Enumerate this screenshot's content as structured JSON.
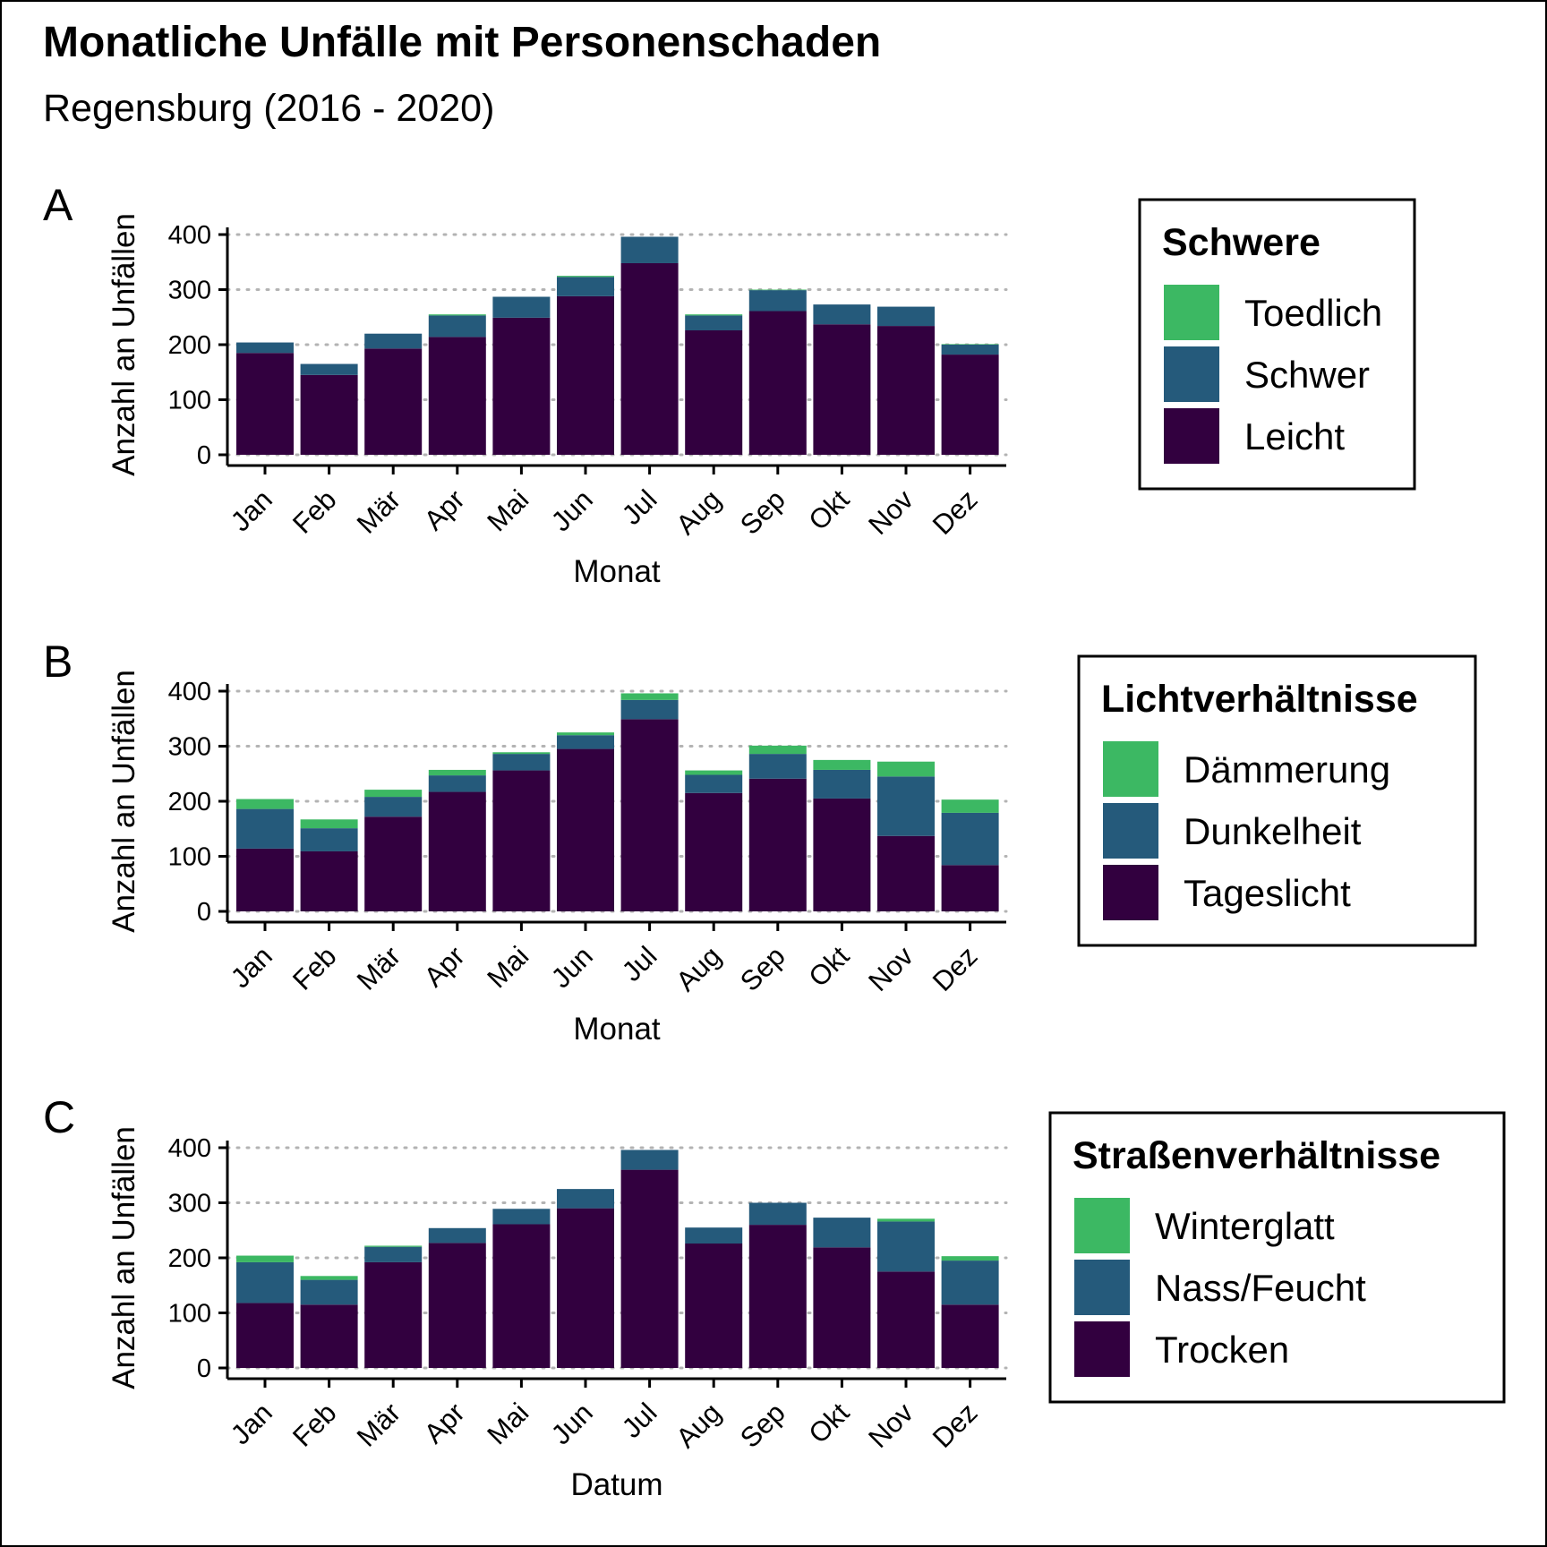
{
  "title": "Monatliche Unfälle mit Personenschaden",
  "subtitle": "Regensburg (2016 - 2020)",
  "colors": {
    "dark": "#32003f",
    "mid": "#255a7b",
    "light": "#3cb863"
  },
  "chart_data": [
    {
      "type": "bar",
      "stacked": true,
      "panel": "A",
      "xlabel": "Monat",
      "ylabel": "Anzahl an Unfällen",
      "ylim": [
        0,
        400
      ],
      "yticks": [
        0,
        100,
        200,
        300,
        400
      ],
      "grid": "horizontal dotted",
      "legend_title": "Schwere",
      "legend_placement": "right",
      "categories": [
        "Jan",
        "Feb",
        "Mär",
        "Apr",
        "Mai",
        "Jun",
        "Jul",
        "Aug",
        "Sep",
        "Okt",
        "Nov",
        "Dez"
      ],
      "series": [
        {
          "name": "Leicht",
          "values": [
            185,
            145,
            193,
            214,
            249,
            288,
            348,
            226,
            261,
            237,
            234,
            182
          ]
        },
        {
          "name": "Schwer",
          "values": [
            19,
            20,
            27,
            39,
            38,
            35,
            48,
            27,
            38,
            36,
            35,
            18
          ]
        },
        {
          "name": "Toedlich",
          "values": [
            0,
            0,
            0,
            2,
            0,
            2,
            0,
            2,
            1,
            0,
            0,
            1
          ]
        }
      ]
    },
    {
      "type": "bar",
      "stacked": true,
      "panel": "B",
      "xlabel": "Monat",
      "ylabel": "Anzahl an Unfällen",
      "ylim": [
        0,
        400
      ],
      "yticks": [
        0,
        100,
        200,
        300,
        400
      ],
      "grid": "horizontal dotted",
      "legend_title": "Lichtverhältnisse",
      "legend_placement": "right",
      "categories": [
        "Jan",
        "Feb",
        "Mär",
        "Apr",
        "Mai",
        "Jun",
        "Jul",
        "Aug",
        "Sep",
        "Okt",
        "Nov",
        "Dez"
      ],
      "series": [
        {
          "name": "Tageslicht",
          "values": [
            114,
            109,
            172,
            217,
            256,
            295,
            349,
            215,
            241,
            205,
            137,
            84
          ]
        },
        {
          "name": "Dunkelheit",
          "values": [
            72,
            42,
            36,
            30,
            30,
            25,
            35,
            33,
            45,
            52,
            108,
            95
          ]
        },
        {
          "name": "Dämmerung",
          "values": [
            18,
            16,
            13,
            10,
            3,
            5,
            12,
            8,
            15,
            18,
            27,
            24
          ]
        }
      ]
    },
    {
      "type": "bar",
      "stacked": true,
      "panel": "C",
      "xlabel": "Datum",
      "ylabel": "Anzahl an Unfällen",
      "ylim": [
        0,
        400
      ],
      "yticks": [
        0,
        100,
        200,
        300,
        400
      ],
      "grid": "horizontal dotted",
      "legend_title": "Straßenverhältnisse",
      "legend_placement": "right",
      "categories": [
        "Jan",
        "Feb",
        "Mär",
        "Apr",
        "Mai",
        "Jun",
        "Jul",
        "Aug",
        "Sep",
        "Okt",
        "Nov",
        "Dez"
      ],
      "series": [
        {
          "name": "Trocken",
          "values": [
            118,
            115,
            192,
            227,
            261,
            290,
            360,
            226,
            260,
            219,
            175,
            115
          ]
        },
        {
          "name": "Nass/Feucht",
          "values": [
            74,
            45,
            28,
            27,
            28,
            35,
            36,
            29,
            40,
            54,
            91,
            80
          ]
        },
        {
          "name": "Winterglatt",
          "values": [
            12,
            7,
            2,
            0,
            0,
            0,
            0,
            0,
            0,
            0,
            5,
            8
          ]
        }
      ]
    }
  ]
}
